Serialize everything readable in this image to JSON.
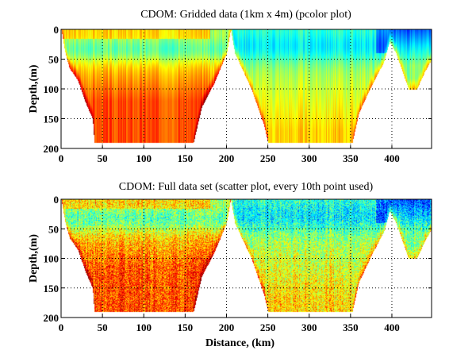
{
  "chart_data": [
    {
      "type": "heatmap",
      "title": "CDOM: Gridded data (1km x 4m) (pcolor plot)",
      "xlabel": "",
      "ylabel": "Depth,(m)",
      "xlim": [
        0,
        448
      ],
      "ylim": [
        200,
        0
      ],
      "x_ticks": [
        0,
        50,
        100,
        150,
        200,
        250,
        300,
        350,
        400
      ],
      "y_ticks": [
        0,
        50,
        100,
        150,
        200
      ],
      "grid": "dotted",
      "colormap": "jet",
      "style": "smooth",
      "bottom_profile": {
        "x": [
          0,
          5,
          10,
          20,
          30,
          38,
          40,
          160,
          170,
          185,
          200,
          205,
          210,
          230,
          245,
          250,
          352,
          360,
          375,
          390,
          397,
          405,
          415,
          420,
          430,
          440,
          448
        ],
        "depth": [
          0,
          40,
          65,
          85,
          125,
          150,
          190,
          190,
          130,
          90,
          40,
          0,
          40,
          100,
          160,
          190,
          190,
          140,
          95,
          55,
          20,
          40,
          80,
          100,
          100,
          70,
          50
        ]
      },
      "description": "Higher CDOM (red/orange) on inshore slope 0-170 km and along slopes; lower (blue) near surface 400-448 km"
    },
    {
      "type": "scatter",
      "title": "CDOM: Full data set (scatter plot, every 10th point used)",
      "xlabel": "Distance, (km)",
      "ylabel": "Depth,(m)",
      "xlim": [
        0,
        448
      ],
      "ylim": [
        200,
        0
      ],
      "x_ticks": [
        0,
        50,
        100,
        150,
        200,
        250,
        300,
        350,
        400
      ],
      "y_ticks": [
        0,
        50,
        100,
        150,
        200
      ],
      "grid": "dotted",
      "colormap": "jet",
      "style": "noisy",
      "bottom_profile": {
        "x": [
          0,
          5,
          10,
          20,
          30,
          38,
          40,
          160,
          170,
          185,
          200,
          205,
          210,
          230,
          245,
          250,
          352,
          360,
          375,
          390,
          397,
          405,
          415,
          420,
          430,
          440,
          448
        ],
        "depth": [
          0,
          40,
          65,
          85,
          125,
          150,
          190,
          190,
          130,
          90,
          40,
          0,
          40,
          100,
          160,
          190,
          190,
          140,
          95,
          55,
          20,
          40,
          80,
          100,
          100,
          70,
          50
        ]
      },
      "description": "Same section as scatter points, noisier appearance"
    }
  ]
}
